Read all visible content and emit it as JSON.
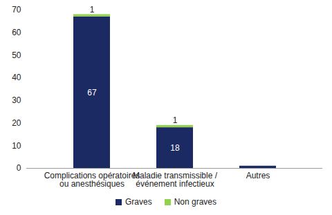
{
  "chart_data": {
    "type": "bar",
    "stacked": true,
    "categories": [
      "Complications opératoires\nou anesthésiques",
      "Maladie transmissible /\névénement infectieux",
      "Autres"
    ],
    "series": [
      {
        "name": "Graves",
        "color": "#1b2a63",
        "values": [
          67,
          18,
          1
        ],
        "value_labels": [
          "67",
          "18",
          null
        ]
      },
      {
        "name": "Non graves",
        "color": "#92d050",
        "values": [
          1,
          1,
          0
        ],
        "value_labels": [
          "1",
          "1",
          null
        ]
      }
    ],
    "ylim": [
      0,
      70
    ],
    "yticks": [
      0,
      10,
      20,
      30,
      40,
      50,
      60,
      70
    ],
    "grid": false,
    "data_labels": true,
    "legend": "bottom"
  }
}
